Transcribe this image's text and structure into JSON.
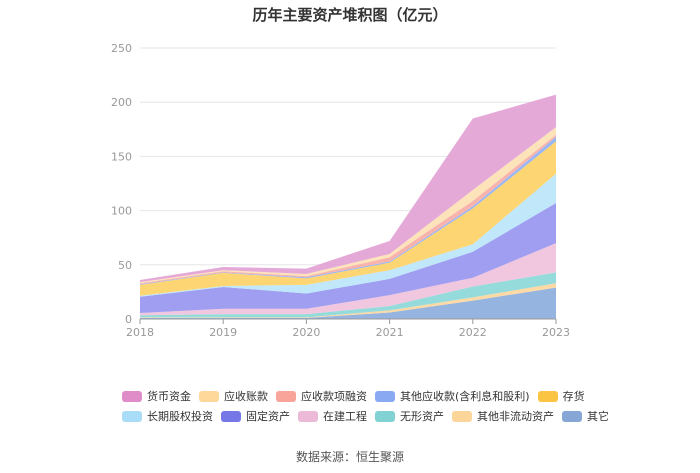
{
  "chart_data": {
    "type": "area",
    "stacked": true,
    "title": "历年主要资产堆积图（亿元）",
    "categories": [
      "2018",
      "2019",
      "2020",
      "2021",
      "2022",
      "2023"
    ],
    "ylim": [
      0,
      250
    ],
    "yticks": [
      "0",
      "50",
      "100",
      "150",
      "200",
      "250"
    ],
    "series": [
      {
        "name": "其它",
        "color": "#8fb0dd",
        "values": [
          1,
          1,
          1,
          6,
          17,
          29
        ]
      },
      {
        "name": "其他非流动资产",
        "color": "#fcd7a0",
        "values": [
          0.5,
          0.5,
          0.5,
          2,
          3,
          4
        ]
      },
      {
        "name": "无形资产",
        "color": "#8fd9d9",
        "values": [
          2,
          3,
          3,
          4,
          10,
          10
        ]
      },
      {
        "name": "在建工程",
        "color": "#f0c4dd",
        "values": [
          2,
          5,
          5,
          10,
          8,
          27
        ]
      },
      {
        "name": "固定资产",
        "color": "#9a99f0",
        "values": [
          15,
          20,
          14,
          15,
          24,
          37
        ]
      },
      {
        "name": "长期股权投资",
        "color": "#bde6fa",
        "values": [
          1,
          1,
          8,
          8,
          7,
          27
        ]
      },
      {
        "name": "存货",
        "color": "#fdd36a",
        "values": [
          10,
          12,
          6,
          7,
          33,
          30
        ]
      },
      {
        "name": "其他应收款(含利息和股利)",
        "color": "#94b2f4",
        "values": [
          0.5,
          0.5,
          1,
          1,
          2,
          4
        ]
      },
      {
        "name": "应收款项融资",
        "color": "#f8b0a8",
        "values": [
          1,
          1,
          1,
          4,
          5,
          2
        ]
      },
      {
        "name": "应收账款",
        "color": "#fde1b6",
        "values": [
          1,
          1,
          2,
          3,
          10,
          7
        ]
      },
      {
        "name": "货币资金",
        "color": "#e4a4d6",
        "values": [
          2,
          3,
          5,
          12,
          66,
          30
        ]
      }
    ],
    "legend_rows": [
      [
        "货币资金",
        "应收账款",
        "应收款项融资",
        "其他应收款(含利息和股利)",
        "存货"
      ],
      [
        "长期股权投资",
        "固定资产",
        "在建工程",
        "无形资产",
        "其他非流动资产",
        "其它"
      ]
    ],
    "legend_colors": {
      "货币资金": "#e08cc8",
      "应收账款": "#fdd89a",
      "应收款项融资": "#f9a49a",
      "其他应收款(含利息和股利)": "#89a9f2",
      "存货": "#fbc443",
      "长期股权投资": "#a8dcf7",
      "固定资产": "#7577e6",
      "在建工程": "#ecbad6",
      "无形资产": "#82d2d3",
      "其他非流动资产": "#fcd59a",
      "其它": "#86a6d6"
    },
    "grid_color": "#e6e6e6",
    "axis_color": "#999999"
  },
  "footer": {
    "source": "数据来源：恒生聚源"
  }
}
